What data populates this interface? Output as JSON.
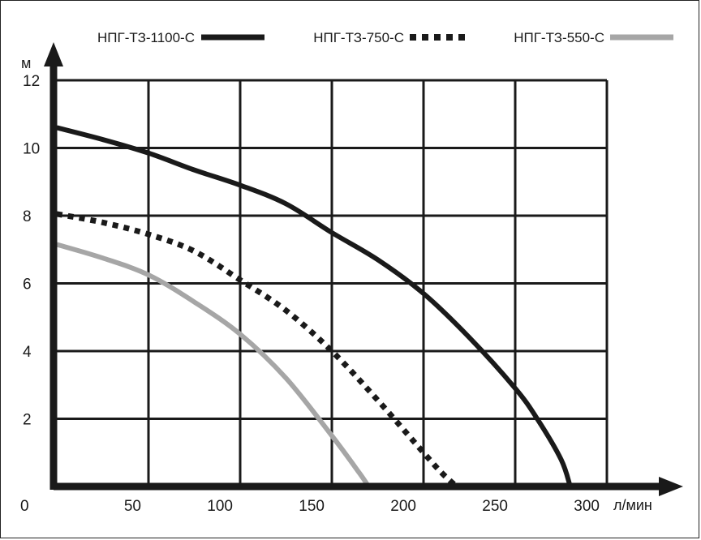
{
  "chart_data": {
    "type": "line",
    "title": "",
    "xlabel": "л/мин",
    "ylabel": "м",
    "xlim": [
      0,
      300
    ],
    "ylim": [
      0,
      12
    ],
    "xticks": [
      0,
      50,
      100,
      150,
      200,
      250,
      300
    ],
    "yticks": [
      2,
      4,
      6,
      8,
      10,
      12
    ],
    "x_tick_labels": [
      "50",
      "100",
      "150",
      "200",
      "250",
      "300"
    ],
    "y_tick_labels": [
      "2",
      "4",
      "6",
      "8",
      "10",
      "12"
    ],
    "origin_label": "0",
    "grid": true,
    "legend_position": "top",
    "series": [
      {
        "name": "НПГ-ТЗ-1100-С",
        "style": "solid",
        "color": "#1a1a1a",
        "x": [
          0,
          25,
          50,
          75,
          100,
          125,
          150,
          175,
          200,
          225,
          250,
          262,
          275,
          280
        ],
        "y": [
          10.6,
          10.25,
          9.85,
          9.35,
          8.9,
          8.35,
          7.5,
          6.7,
          5.7,
          4.4,
          2.9,
          2.0,
          0.8,
          0.0
        ]
      },
      {
        "name": "НПГ-ТЗ-750-С",
        "style": "dotted",
        "color": "#1a1a1a",
        "x": [
          0,
          25,
          50,
          75,
          100,
          125,
          150,
          175,
          200,
          210,
          218
        ],
        "y": [
          8.05,
          7.8,
          7.45,
          6.95,
          6.1,
          5.2,
          4.0,
          2.55,
          1.0,
          0.4,
          0.0
        ]
      },
      {
        "name": "НПГ-ТЗ-550-С",
        "style": "solid",
        "color": "#a6a6a6",
        "x": [
          0,
          25,
          50,
          75,
          100,
          125,
          150,
          165,
          170
        ],
        "y": [
          7.15,
          6.75,
          6.25,
          5.45,
          4.5,
          3.2,
          1.5,
          0.4,
          0.0
        ]
      }
    ]
  }
}
